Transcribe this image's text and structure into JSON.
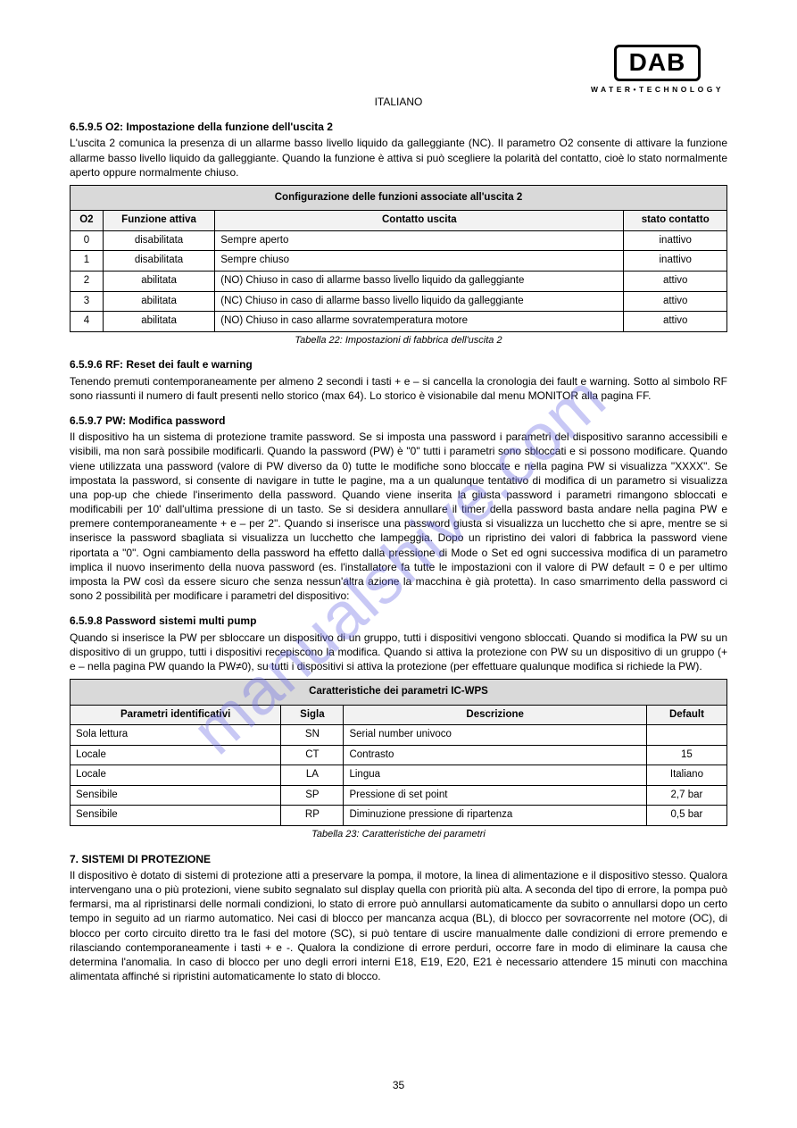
{
  "header": {
    "language": "ITALIANO"
  },
  "logo": {
    "brand": "DAB",
    "tagline": "WATER•TECHNOLOGY"
  },
  "watermark": {
    "text": "manualshive.com"
  },
  "s1": {
    "num": "6.5.9.5",
    "title": "O2: Impostazione della funzione dell'uscita 2",
    "body": "L'uscita 2 comunica la presenza di un allarme basso livello liquido da galleggiante (NC). Il parametro O2 consente di attivare la funzione allarme basso livello liquido da galleggiante. Quando la funzione è attiva si può scegliere la polarità del contatto, cioè lo stato normalmente aperto oppure normalmente chiuso.",
    "tableTitle": "Configurazione delle funzioni associate all'uscita 2",
    "cols": [
      "O2",
      "Funzione attiva",
      "Contatto uscita",
      "stato contatto"
    ],
    "rows": [
      [
        "0",
        "disabilitata",
        "Sempre aperto",
        "inattivo"
      ],
      [
        "1",
        "disabilitata",
        "Sempre chiuso",
        "inattivo"
      ],
      [
        "2",
        "abilitata",
        "(NO) Chiuso in caso di allarme basso livello liquido da galleggiante",
        "attivo"
      ],
      [
        "3",
        "abilitata",
        "(NC) Chiuso in caso di allarme basso livello liquido da galleggiante",
        "attivo"
      ],
      [
        "4",
        "abilitata",
        "(NO) Chiuso in caso allarme sovratemperatura motore",
        "attivo"
      ]
    ],
    "caption": "Tabella 22: Impostazioni di fabbrica dell'uscita 2"
  },
  "s2": {
    "num": "6.5.9.6",
    "title": "RF: Reset dei fault e warning",
    "body": "Tenendo premuti contemporaneamente per almeno 2 secondi i tasti + e – si cancella la cronologia dei fault e warning. Sotto al simbolo RF sono riassunti il numero di fault presenti nello storico (max 64). Lo storico è visionabile dal menu MONITOR alla pagina FF."
  },
  "s3": {
    "num": "6.5.9.7",
    "title": "PW: Modifica password",
    "body1": "Il dispositivo ha un sistema di protezione tramite password. Se si imposta una password i parametri del dispositivo saranno accessibili e visibili, ma non sarà possibile modificarli. Quando la password (PW) è \"0\" tutti i parametri sono sbloccati e si possono modificare. Quando viene utilizzata una password (valore di PW diverso da 0) tutte le modifiche sono bloccate e nella pagina PW si visualizza \"XXXX\". Se impostata la password, si consente di navigare in tutte le pagine, ma a un qualunque tentativo di modifica di un parametro si visualizza una pop-up che chiede l'inserimento della password. Quando viene inserita la giusta password i parametri rimangono sbloccati e modificabili per 10' dall'ultima pressione di un tasto. Se si desidera annullare il timer della password basta andare nella pagina PW e premere contemporaneamente + e – per 2\". Quando si inserisce una password giusta si visualizza un lucchetto che si apre, mentre se si inserisce la password sbagliata si visualizza un lucchetto che lampeggia. Dopo un ripristino dei valori di fabbrica la password viene riportata a \"0\". Ogni cambiamento della password ha effetto dalla pressione di Mode o Set ed ogni successiva modifica di un parametro implica il nuovo inserimento della nuova password (es. l'installatore fa tutte le impostazioni con il valore di PW default = 0 e per ultimo imposta la PW così da essere sicuro che senza nessun'altra azione la macchina è già protetta). In caso smarrimento della password ci sono 2 possibilità per modificare i parametri del dispositivo:"
  },
  "s4": {
    "num": "6.5.9.8",
    "title": "Password sistemi multi pump",
    "body1": "Quando si inserisce la PW per sbloccare un dispositivo di un gruppo, tutti i dispositivi vengono sbloccati. Quando si modifica la PW su un dispositivo di un gruppo, tutti i dispositivi recepiscono la modifica. Quando si attiva la protezione con PW su un dispositivo di un gruppo (+ e – nella pagina PW quando la PW≠0), su tutti i dispositivi si attiva la protezione (per effettuare qualunque modifica si richiede la PW).",
    "tableTitle": "Caratteristiche dei parametri IC-WPS",
    "cols": [
      "Parametri identificativi",
      "Sigla",
      "Descrizione",
      "Default"
    ],
    "rows": [
      [
        "Sola lettura",
        "SN",
        "Serial number univoco",
        ""
      ],
      [
        "Locale",
        "CT",
        "Contrasto",
        "15"
      ],
      [
        "Locale",
        "LA",
        "Lingua",
        "Italiano"
      ],
      [
        "Sensibile",
        "SP",
        "Pressione di set point",
        "2,7 bar"
      ],
      [
        "Sensibile",
        "RP",
        "Diminuzione pressione di ripartenza",
        "0,5 bar"
      ]
    ],
    "caption": "Tabella 23: Caratteristiche dei parametri"
  },
  "s5": {
    "num": "7.",
    "title": "SISTEMI DI PROTEZIONE",
    "body": "Il dispositivo è dotato di sistemi di protezione atti a preservare la pompa, il motore, la linea di alimentazione e il dispositivo stesso. Qualora intervengano una o più protezioni, viene subito segnalato sul display quella con priorità più alta. A seconda del tipo di errore, la pompa può fermarsi, ma al ripristinarsi delle normali condizioni, lo stato di errore può annullarsi automaticamente da subito o annullarsi dopo un certo tempo in seguito ad un riarmo automatico. Nei casi di blocco per mancanza acqua (BL), di blocco per sovracorrente nel motore (OC), di blocco per corto circuito diretto tra le fasi del motore (SC), si può tentare di uscire manualmente dalle condizioni di errore premendo e rilasciando contemporaneamente i tasti + e -. Qualora la condizione di errore perduri, occorre fare in modo di eliminare la causa che determina l'anomalia. In caso di blocco per uno degli errori interni E18, E19, E20, E21 è necessario attendere 15 minuti con macchina alimentata affinché si ripristini automaticamente lo stato di blocco."
  },
  "pageNumber": "35"
}
